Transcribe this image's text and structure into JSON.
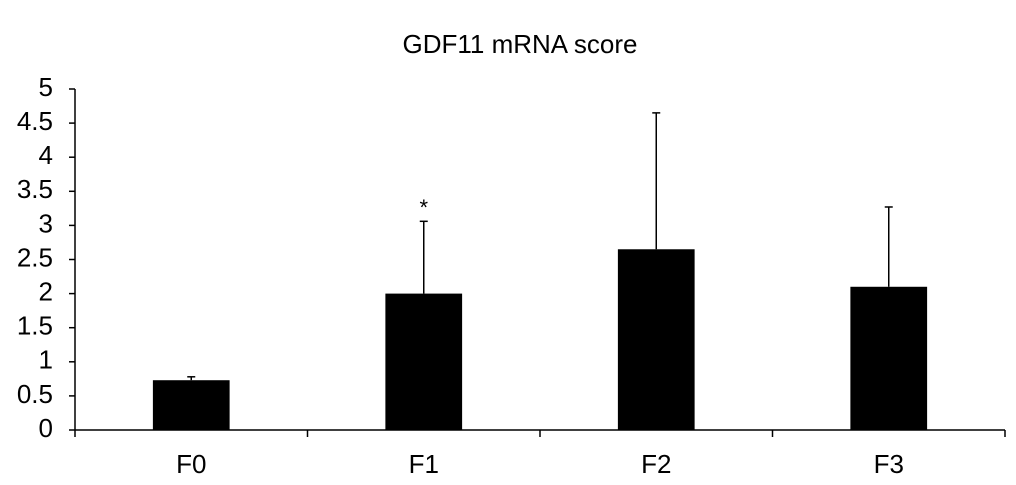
{
  "chart_data": {
    "type": "bar",
    "title": "GDF11 mRNA score",
    "categories": [
      "F0",
      "F1",
      "F2",
      "F3"
    ],
    "values": [
      0.73,
      2.0,
      2.65,
      2.1
    ],
    "errors": [
      0.05,
      1.06,
      2.0,
      1.17
    ],
    "annotations": [
      null,
      "*",
      null,
      null
    ],
    "color": "#000000",
    "ylim": [
      0,
      5
    ],
    "yticks": [
      0,
      0.5,
      1,
      1.5,
      2,
      2.5,
      3,
      3.5,
      4,
      4.5,
      5
    ],
    "grid": false
  }
}
